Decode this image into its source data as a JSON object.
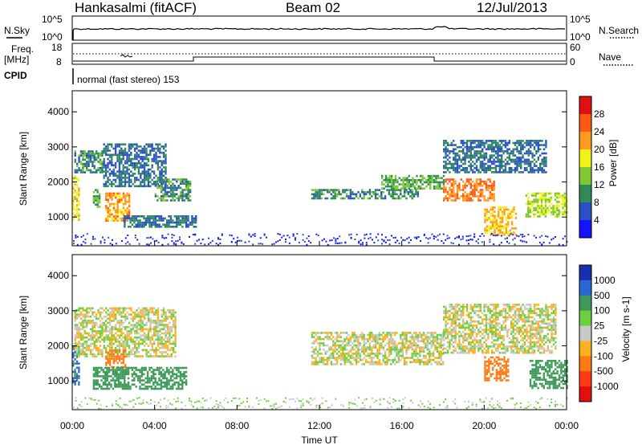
{
  "header": {
    "station": "Hankasalmi (fitACF)",
    "beam": "Beam 02",
    "date": "12/Jul/2013"
  },
  "noise_panel": {
    "left_label": "N.Sky",
    "right_label": "N.Search",
    "y_ticks": [
      "10^5",
      "10^0"
    ]
  },
  "freq_panel": {
    "left_label_line1": "Freq.",
    "left_label_line2": "[MHz]",
    "left_ticks": [
      "18",
      "8"
    ],
    "right_label": "Nave",
    "right_ticks": [
      "60",
      "0"
    ]
  },
  "cpid": {
    "label": "CPID",
    "value": "normal (fast stereo) 153"
  },
  "x_axis": {
    "label": "Time UT",
    "ticks": [
      "00:00",
      "04:00",
      "08:00",
      "12:00",
      "16:00",
      "20:00",
      "00:00"
    ]
  },
  "y_axis": {
    "label": "Slant Range [km]",
    "ticks": [
      "1000",
      "2000",
      "3000",
      "4000"
    ]
  },
  "power_colorbar": {
    "label": "Power [dB]",
    "ticks": [
      "4",
      "8",
      "12",
      "16",
      "20",
      "24",
      "28"
    ],
    "colors": [
      "#1414ff",
      "#2a4fc8",
      "#2e8b57",
      "#7fc833",
      "#f2f21b",
      "#ff9a1f",
      "#ff5a14",
      "#e01010"
    ]
  },
  "velocity_colorbar": {
    "label": "Velocity [m s-1]",
    "ticks": [
      "1000",
      "500",
      "100",
      "25",
      "-25",
      "-100",
      "-500",
      "-1000"
    ],
    "colors": [
      "#1a2fb0",
      "#2a66d6",
      "#3f9a5a",
      "#6ccf3d",
      "#c8c8c8",
      "#ffb020",
      "#ff7a14",
      "#ff3a14",
      "#e01010"
    ]
  },
  "chart_data": [
    {
      "type": "heatmap",
      "title": "Power",
      "xlabel": "Time UT",
      "ylabel": "Slant Range [km]",
      "xlim": [
        0,
        24
      ],
      "ylim": [
        180,
        4600
      ],
      "x_units": "hours UT",
      "echo_regions": [
        {
          "t_start": 0.0,
          "t_end": 0.3,
          "range_start": 900,
          "range_end": 2200,
          "power_db": 18
        },
        {
          "t_start": 0.1,
          "t_end": 1.5,
          "range_start": 2300,
          "range_end": 2900,
          "power_db": 10
        },
        {
          "t_start": 1.5,
          "t_end": 4.5,
          "range_start": 1900,
          "range_end": 3100,
          "power_db": 8
        },
        {
          "t_start": 1.0,
          "t_end": 1.3,
          "range_start": 1300,
          "range_end": 1800,
          "power_db": 12
        },
        {
          "t_start": 1.6,
          "t_end": 2.8,
          "range_start": 900,
          "range_end": 1700,
          "power_db": 22
        },
        {
          "t_start": 4.0,
          "t_end": 5.7,
          "range_start": 1500,
          "range_end": 2100,
          "power_db": 10
        },
        {
          "t_start": 2.5,
          "t_end": 6.0,
          "range_start": 750,
          "range_end": 1050,
          "power_db": 8
        },
        {
          "t_start": 11.6,
          "t_end": 16.8,
          "range_start": 1550,
          "range_end": 1800,
          "power_db": 10
        },
        {
          "t_start": 15.0,
          "t_end": 18.0,
          "range_start": 1800,
          "range_end": 2200,
          "power_db": 12
        },
        {
          "t_start": 18.0,
          "t_end": 20.5,
          "range_start": 1500,
          "range_end": 2100,
          "power_db": 24
        },
        {
          "t_start": 18.0,
          "t_end": 23.0,
          "range_start": 2300,
          "range_end": 3200,
          "power_db": 8
        },
        {
          "t_start": 20.0,
          "t_end": 21.5,
          "range_start": 500,
          "range_end": 1300,
          "power_db": 20
        },
        {
          "t_start": 22.0,
          "t_end": 24.0,
          "range_start": 1000,
          "range_end": 1700,
          "power_db": 16
        }
      ]
    },
    {
      "type": "heatmap",
      "title": "Velocity",
      "xlabel": "Time UT",
      "ylabel": "Slant Range [km]",
      "xlim": [
        0,
        24
      ],
      "ylim": [
        180,
        4600
      ],
      "x_units": "hours UT",
      "echo_regions": [
        {
          "t_start": 0.0,
          "t_end": 0.3,
          "range_start": 900,
          "range_end": 2000,
          "velocity": 500
        },
        {
          "t_start": 0.1,
          "t_end": 5.0,
          "range_start": 1700,
          "range_end": 3100,
          "velocity": 0
        },
        {
          "t_start": 1.6,
          "t_end": 2.6,
          "range_start": 1400,
          "range_end": 1900,
          "velocity": -300
        },
        {
          "t_start": 1.0,
          "t_end": 5.5,
          "range_start": 750,
          "range_end": 1400,
          "velocity": 300
        },
        {
          "t_start": 11.6,
          "t_end": 18.0,
          "range_start": 1500,
          "range_end": 2400,
          "velocity": 0
        },
        {
          "t_start": 18.0,
          "t_end": 23.5,
          "range_start": 1800,
          "range_end": 3200,
          "velocity": 0
        },
        {
          "t_start": 20.0,
          "t_end": 21.2,
          "range_start": 1000,
          "range_end": 1700,
          "velocity": -200
        },
        {
          "t_start": 22.2,
          "t_end": 24.0,
          "range_start": 800,
          "range_end": 1600,
          "velocity": 200
        }
      ]
    }
  ]
}
